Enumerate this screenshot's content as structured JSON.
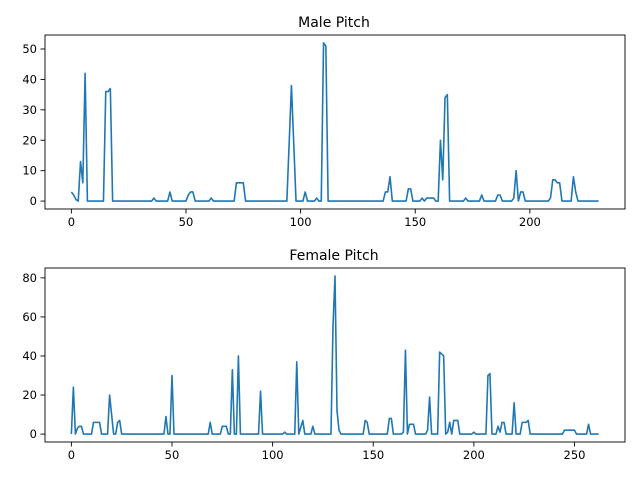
{
  "chart_data": [
    {
      "type": "line",
      "title": "Male Pitch",
      "xlabel": "",
      "ylabel": "",
      "xlim": [
        -11.5,
        241.5
      ],
      "ylim": [
        -2.6,
        54.6
      ],
      "xticks": [
        0,
        50,
        100,
        150,
        200
      ],
      "yticks": [
        0,
        10,
        20,
        30,
        40,
        50
      ],
      "grid": false,
      "series": [
        {
          "color": "#1f77b4",
          "points": [
            [
              0,
              3
            ],
            [
              1,
              2
            ],
            [
              2,
              0.5
            ],
            [
              3,
              0
            ],
            [
              4,
              13
            ],
            [
              5,
              6
            ],
            [
              6,
              42
            ],
            [
              7,
              0
            ],
            [
              14,
              0
            ],
            [
              15,
              36
            ],
            [
              16,
              36
            ],
            [
              17,
              37
            ],
            [
              18,
              0
            ],
            [
              35,
              0
            ],
            [
              36,
              1
            ],
            [
              37,
              0
            ],
            [
              42,
              0
            ],
            [
              43,
              3
            ],
            [
              44,
              0
            ],
            [
              50,
              0
            ],
            [
              51,
              2
            ],
            [
              52,
              3
            ],
            [
              53,
              3
            ],
            [
              54,
              0
            ],
            [
              60,
              0
            ],
            [
              61,
              1
            ],
            [
              62,
              0
            ],
            [
              71,
              0
            ],
            [
              72,
              6
            ],
            [
              73,
              6
            ],
            [
              74,
              6
            ],
            [
              75,
              6
            ],
            [
              76,
              0
            ],
            [
              94,
              0
            ],
            [
              96,
              38
            ],
            [
              98,
              0
            ],
            [
              101,
              0
            ],
            [
              102,
              3
            ],
            [
              103,
              0
            ],
            [
              106,
              0
            ],
            [
              107,
              1
            ],
            [
              108,
              0
            ],
            [
              109,
              0
            ],
            [
              110,
              52
            ],
            [
              111,
              51
            ],
            [
              112,
              0
            ],
            [
              136,
              0
            ],
            [
              137,
              3
            ],
            [
              138,
              3
            ],
            [
              139,
              8
            ],
            [
              140,
              0
            ],
            [
              146,
              0
            ],
            [
              147,
              4
            ],
            [
              148,
              4
            ],
            [
              149,
              0
            ],
            [
              152,
              0
            ],
            [
              153,
              1
            ],
            [
              154,
              0
            ],
            [
              155,
              1
            ],
            [
              156,
              1
            ],
            [
              158,
              1
            ],
            [
              159,
              0
            ],
            [
              160,
              0
            ],
            [
              161,
              20
            ],
            [
              162,
              7
            ],
            [
              163,
              34
            ],
            [
              164,
              35
            ],
            [
              165,
              0
            ],
            [
              171,
              0
            ],
            [
              172,
              1
            ],
            [
              173,
              0
            ],
            [
              178,
              0
            ],
            [
              179,
              2
            ],
            [
              180,
              0
            ],
            [
              185,
              0
            ],
            [
              186,
              2
            ],
            [
              187,
              2
            ],
            [
              188,
              0
            ],
            [
              192,
              0
            ],
            [
              193,
              1
            ],
            [
              194,
              10
            ],
            [
              195,
              0
            ],
            [
              196,
              3
            ],
            [
              197,
              3
            ],
            [
              198,
              0
            ],
            [
              208,
              0
            ],
            [
              209,
              1
            ],
            [
              210,
              7
            ],
            [
              211,
              7
            ],
            [
              212,
              6
            ],
            [
              213,
              6
            ],
            [
              214,
              0
            ],
            [
              218,
              0
            ],
            [
              219,
              8
            ],
            [
              220,
              3
            ],
            [
              221,
              0
            ],
            [
              230,
              0
            ]
          ]
        }
      ]
    },
    {
      "type": "line",
      "title": "Female Pitch",
      "xlabel": "",
      "ylabel": "",
      "xlim": [
        -13.1,
        275.1
      ],
      "ylim": [
        -4.05,
        85.05
      ],
      "xticks": [
        0,
        50,
        100,
        150,
        200,
        250
      ],
      "yticks": [
        0,
        20,
        40,
        60,
        80
      ],
      "grid": false,
      "series": [
        {
          "color": "#1f77b4",
          "points": [
            [
              0,
              0
            ],
            [
              1,
              24
            ],
            [
              2,
              0
            ],
            [
              3,
              3
            ],
            [
              4,
              4
            ],
            [
              5,
              4
            ],
            [
              6,
              0
            ],
            [
              10,
              0
            ],
            [
              11,
              6
            ],
            [
              14,
              6
            ],
            [
              15,
              0
            ],
            [
              18,
              0
            ],
            [
              19,
              20
            ],
            [
              20,
              10
            ],
            [
              21,
              0
            ],
            [
              22,
              0
            ],
            [
              23,
              6
            ],
            [
              24,
              7
            ],
            [
              25,
              0
            ],
            [
              46,
              0
            ],
            [
              47,
              9
            ],
            [
              48,
              0
            ],
            [
              49,
              0
            ],
            [
              50,
              30
            ],
            [
              51,
              0
            ],
            [
              68,
              0
            ],
            [
              69,
              6
            ],
            [
              70,
              0
            ],
            [
              74,
              0
            ],
            [
              75,
              4
            ],
            [
              77,
              4
            ],
            [
              78,
              0
            ],
            [
              79,
              0
            ],
            [
              80,
              33
            ],
            [
              81,
              0
            ],
            [
              82,
              0
            ],
            [
              83,
              40
            ],
            [
              84,
              0
            ],
            [
              93,
              0
            ],
            [
              94,
              22
            ],
            [
              95,
              0
            ],
            [
              105,
              0
            ],
            [
              106,
              1
            ],
            [
              107,
              0
            ],
            [
              111,
              0
            ],
            [
              112,
              37
            ],
            [
              113,
              0
            ],
            [
              115,
              7
            ],
            [
              116,
              0
            ],
            [
              119,
              0
            ],
            [
              120,
              4
            ],
            [
              121,
              0
            ],
            [
              129,
              0
            ],
            [
              130,
              55
            ],
            [
              131,
              81
            ],
            [
              132,
              12
            ],
            [
              133,
              2
            ],
            [
              134,
              0
            ],
            [
              145,
              0
            ],
            [
              146,
              7
            ],
            [
              147,
              6
            ],
            [
              148,
              0
            ],
            [
              157,
              0
            ],
            [
              158,
              8
            ],
            [
              159,
              8
            ],
            [
              160,
              0
            ],
            [
              164,
              0
            ],
            [
              165,
              1
            ],
            [
              166,
              43
            ],
            [
              167,
              0
            ],
            [
              168,
              5
            ],
            [
              170,
              5
            ],
            [
              171,
              0
            ],
            [
              176,
              0
            ],
            [
              177,
              2
            ],
            [
              178,
              19
            ],
            [
              179,
              0
            ],
            [
              182,
              0
            ],
            [
              183,
              42
            ],
            [
              185,
              40
            ],
            [
              186,
              0
            ],
            [
              187,
              1
            ],
            [
              188,
              6
            ],
            [
              189,
              0
            ],
            [
              190,
              7
            ],
            [
              192,
              7
            ],
            [
              193,
              0
            ],
            [
              199,
              0
            ],
            [
              200,
              1
            ],
            [
              201,
              0
            ],
            [
              206,
              0
            ],
            [
              207,
              30
            ],
            [
              208,
              31
            ],
            [
              209,
              0
            ],
            [
              211,
              0
            ],
            [
              212,
              4
            ],
            [
              213,
              1
            ],
            [
              214,
              6
            ],
            [
              215,
              6
            ],
            [
              216,
              0
            ],
            [
              219,
              0
            ],
            [
              220,
              16
            ],
            [
              221,
              0
            ],
            [
              223,
              0
            ],
            [
              224,
              6
            ],
            [
              226,
              6
            ],
            [
              227,
              7
            ],
            [
              228,
              0
            ],
            [
              244,
              0
            ],
            [
              245,
              2
            ],
            [
              250,
              2
            ],
            [
              251,
              0
            ],
            [
              256,
              0
            ],
            [
              257,
              5
            ],
            [
              258,
              0
            ],
            [
              262,
              0
            ]
          ]
        }
      ]
    }
  ]
}
